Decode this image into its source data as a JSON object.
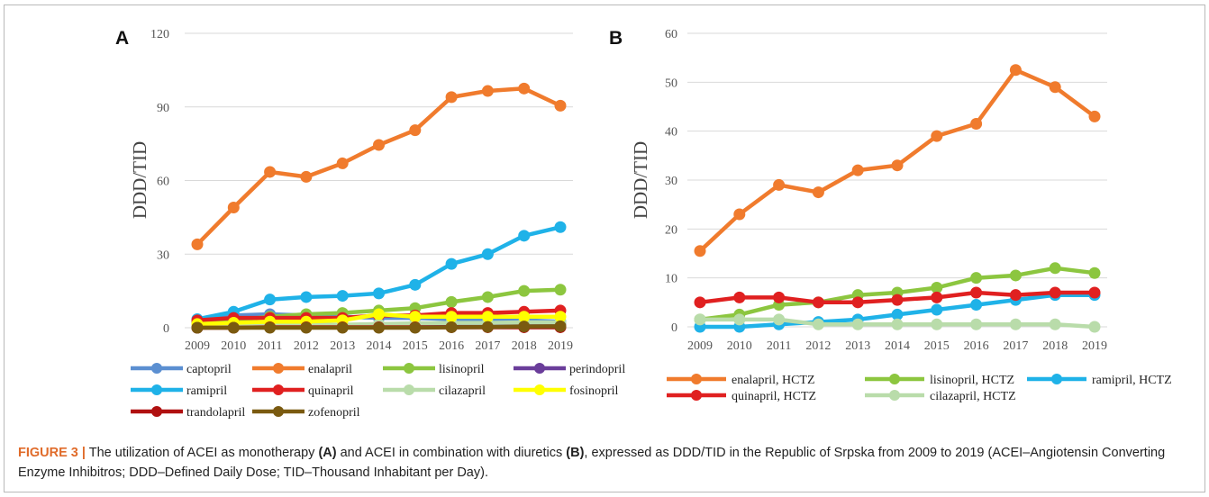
{
  "chart_data": [
    {
      "type": "line",
      "panel_label": "A",
      "ylabel": "DDD/TID",
      "ylim": [
        0,
        120
      ],
      "yticks": [
        0,
        30,
        60,
        90,
        120
      ],
      "x": [
        2009,
        2010,
        2011,
        2012,
        2013,
        2014,
        2015,
        2016,
        2017,
        2018,
        2019
      ],
      "grid": true,
      "legend_position": "bottom",
      "series": [
        {
          "name": "captopril",
          "color": "#5b8fd1",
          "values": [
            3,
            5,
            5.5,
            5,
            4.5,
            4,
            4,
            3.5,
            3,
            3,
            2.5
          ]
        },
        {
          "name": "enalapril",
          "color": "#f07b2d",
          "values": [
            34,
            49,
            63.5,
            61.5,
            67,
            74.5,
            80.5,
            94,
            96.5,
            97.5,
            90.5
          ]
        },
        {
          "name": "lisinopril",
          "color": "#8cc63f",
          "values": [
            2,
            3,
            4.5,
            5.5,
            6,
            7,
            8,
            10.5,
            12.5,
            15,
            15.5
          ]
        },
        {
          "name": "perindopril",
          "color": "#6a3d9a",
          "values": [
            0,
            0.3,
            0.5,
            0.6,
            0.7,
            0.8,
            1,
            1.2,
            1.4,
            1.6,
            1.8
          ]
        },
        {
          "name": "ramipril",
          "color": "#1fb2e8",
          "values": [
            3.5,
            6.5,
            11.5,
            12.5,
            13,
            14,
            17.5,
            26,
            30,
            37.5,
            41
          ]
        },
        {
          "name": "quinapril",
          "color": "#e02020",
          "values": [
            3,
            4,
            4,
            4,
            4,
            5,
            5,
            6,
            6,
            6.5,
            7
          ]
        },
        {
          "name": "cilazapril",
          "color": "#b9dcaa",
          "values": [
            0.5,
            1,
            1.2,
            1.2,
            1.2,
            1.5,
            1.8,
            2,
            2,
            2.2,
            2.2
          ]
        },
        {
          "name": "fosinopril",
          "color": "#ffff00",
          "values": [
            1.5,
            2,
            2.5,
            2.5,
            3,
            5.5,
            4.5,
            4.5,
            4.5,
            4.5,
            4.5
          ]
        },
        {
          "name": "trandolapril",
          "color": "#b01010",
          "values": [
            0,
            0,
            0.2,
            0.2,
            0.2,
            0.2,
            0.2,
            0.2,
            0.2,
            0.2,
            0.2
          ]
        },
        {
          "name": "zofenopril",
          "color": "#7a5a10",
          "values": [
            0,
            0,
            0,
            0,
            0,
            0,
            0,
            0.2,
            0.3,
            0.5,
            0.6
          ]
        }
      ]
    },
    {
      "type": "line",
      "panel_label": "B",
      "ylabel": "DDD/TID",
      "ylim": [
        0,
        60
      ],
      "yticks": [
        0,
        10,
        20,
        30,
        40,
        50,
        60
      ],
      "x": [
        2009,
        2010,
        2011,
        2012,
        2013,
        2014,
        2015,
        2016,
        2017,
        2018,
        2019
      ],
      "grid": true,
      "legend_position": "bottom",
      "series": [
        {
          "name": "enalapril, HCTZ",
          "color": "#f07b2d",
          "values": [
            15.5,
            23,
            29,
            27.5,
            32,
            33,
            39,
            41.5,
            52.5,
            49,
            43
          ]
        },
        {
          "name": "lisinopril, HCTZ",
          "color": "#8cc63f",
          "values": [
            1.5,
            2.5,
            4.5,
            5,
            6.5,
            7,
            8,
            10,
            10.5,
            12,
            11
          ]
        },
        {
          "name": "ramipril, HCTZ",
          "color": "#1fb2e8",
          "values": [
            0,
            0,
            0.5,
            1,
            1.5,
            2.5,
            3.5,
            4.5,
            5.5,
            6.5,
            6.5
          ]
        },
        {
          "name": "quinapril, HCTZ",
          "color": "#e02020",
          "values": [
            5,
            6,
            6,
            5,
            5,
            5.5,
            6,
            7,
            6.5,
            7,
            7
          ]
        },
        {
          "name": "cilazapril, HCTZ",
          "color": "#b9dcaa",
          "values": [
            1.5,
            1.5,
            1.5,
            0.5,
            0.5,
            0.5,
            0.5,
            0.5,
            0.5,
            0.5,
            0
          ]
        }
      ]
    }
  ],
  "caption": {
    "figure_label": "FIGURE 3 |",
    "text_1": " The utilization of ACEI as monotherapy ",
    "bold_1": "(A)",
    "text_2": " and ACEI in combination with diuretics ",
    "bold_2": "(B)",
    "text_3": ", expressed as DDD/TID in the Republic of Srpska from 2009 to 2019 (ACEI–Angiotensin Converting Enzyme Inhibitros; DDD–Defined Daily Dose; TID–Thousand Inhabitant per Day)."
  }
}
